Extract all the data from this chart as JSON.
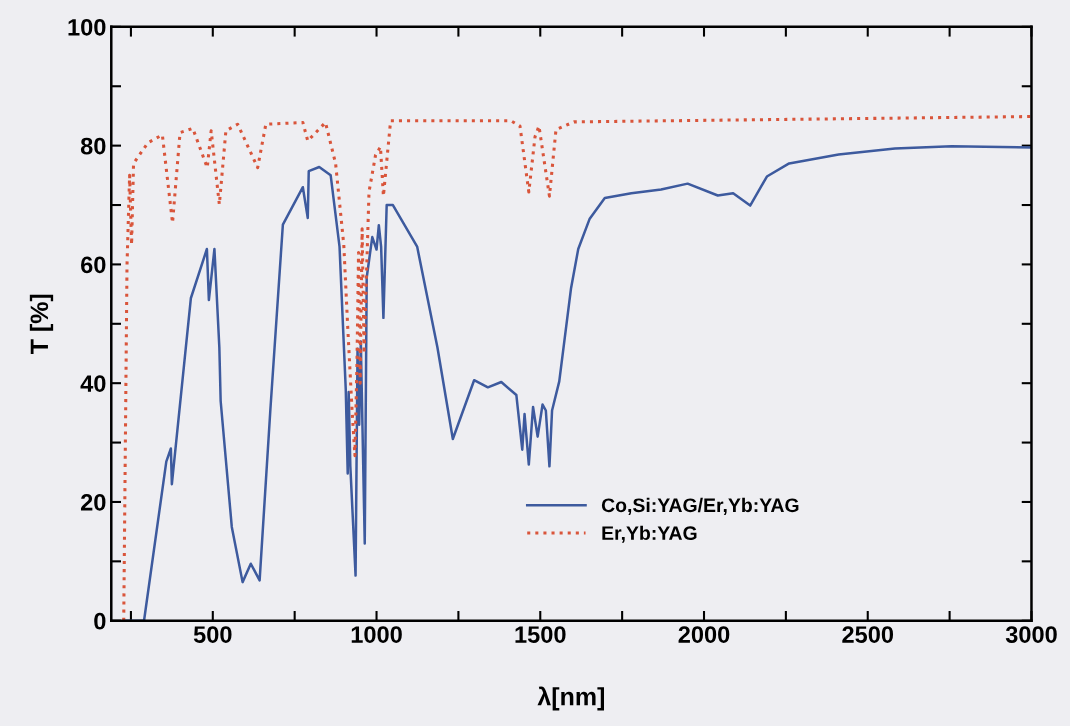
{
  "chart_data": {
    "type": "line",
    "xlabel": "λ[nm]",
    "ylabel": "T [%]",
    "xlim": [
      190,
      3000
    ],
    "ylim": [
      0,
      100
    ],
    "xticks": [
      {
        "value": 250,
        "label": null
      },
      500,
      {
        "value": 750,
        "label": null
      },
      1000,
      {
        "value": 1250,
        "label": null
      },
      1500,
      {
        "value": 1750,
        "label": null
      },
      2000,
      {
        "value": 2250,
        "label": null
      },
      2500,
      {
        "value": 2750,
        "label": null
      },
      3000
    ],
    "yticks": [
      0,
      {
        "value": 10,
        "label": null
      },
      20,
      {
        "value": 30,
        "label": null
      },
      40,
      {
        "value": 50,
        "label": null
      },
      60,
      {
        "value": 70,
        "label": null
      },
      80,
      {
        "value": 90,
        "label": null
      },
      100
    ],
    "grid": false,
    "legend": "bottom",
    "series": [
      {
        "name": "Co,Si:YAG/Er,Yb:YAG",
        "color": "#3d5a9e",
        "line_style": "solid",
        "x": [
          230,
          290,
          358,
          372,
          375,
          433,
          482,
          488,
          505,
          520,
          524,
          558,
          591,
          616,
          643,
          676,
          714,
          775,
          790,
          793,
          825,
          860,
          887,
          906,
          912,
          915,
          920,
          936,
          942,
          947,
          952,
          964,
          970,
          987,
          1000,
          1007,
          1014,
          1021,
          1031,
          1050,
          1124,
          1186,
          1233,
          1298,
          1340,
          1381,
          1427,
          1445,
          1452,
          1465,
          1478,
          1492,
          1507,
          1517,
          1528,
          1536,
          1558,
          1594,
          1616,
          1651,
          1697,
          1778,
          1869,
          1950,
          2042,
          2089,
          2141,
          2192,
          2260,
          2411,
          2583,
          2756,
          3000
        ],
        "values": [
          0,
          0,
          26.8,
          29,
          23,
          54.3,
          62.6,
          54,
          62.6,
          46,
          37,
          15.8,
          6.5,
          9.6,
          6.8,
          35.7,
          66.7,
          73,
          67.8,
          75.7,
          76.4,
          75,
          63,
          39,
          24.8,
          38.5,
          26,
          7.6,
          45.8,
          33,
          47,
          13,
          57.8,
          64.6,
          62.5,
          66.6,
          63,
          51,
          70,
          70,
          63,
          46,
          30.6,
          40.5,
          39.3,
          40.2,
          38,
          28.8,
          34.8,
          26.3,
          36,
          31,
          36.4,
          35.4,
          26,
          35.4,
          40.3,
          56,
          62.6,
          67.7,
          71.2,
          72,
          72.6,
          73.6,
          71.6,
          72,
          69.9,
          74.8,
          77,
          78.5,
          79.5,
          79.9,
          79.7
        ]
      },
      {
        "name": "Er,Yb:YAG",
        "color": "#d9553b",
        "line_style": "dotted",
        "x": [
          228,
          238,
          246,
          252,
          258,
          302,
          346,
          377,
          400,
          439,
          483,
          495,
          520,
          540,
          576,
          637,
          662,
          775,
          790,
          844,
          875,
          900,
          912,
          925,
          934,
          940,
          945,
          950,
          956,
          962,
          977,
          997,
          1012,
          1021,
          1043,
          1124,
          1410,
          1438,
          1465,
          1484,
          1496,
          1528,
          1548,
          1603,
          3000
        ],
        "values": [
          0,
          59.8,
          75,
          63.3,
          77,
          80.5,
          81.8,
          67,
          82.2,
          82.9,
          76.3,
          82.5,
          70.1,
          82.5,
          83.6,
          76.3,
          83.6,
          83.9,
          80.8,
          83.9,
          77,
          63.3,
          49.5,
          35.7,
          27.8,
          42.6,
          62,
          40,
          66,
          45,
          72.2,
          78.4,
          79.8,
          71.5,
          84.2,
          84.2,
          84.2,
          83.3,
          72.2,
          81.5,
          83.3,
          71.5,
          82.7,
          84,
          84.9
        ]
      }
    ]
  }
}
